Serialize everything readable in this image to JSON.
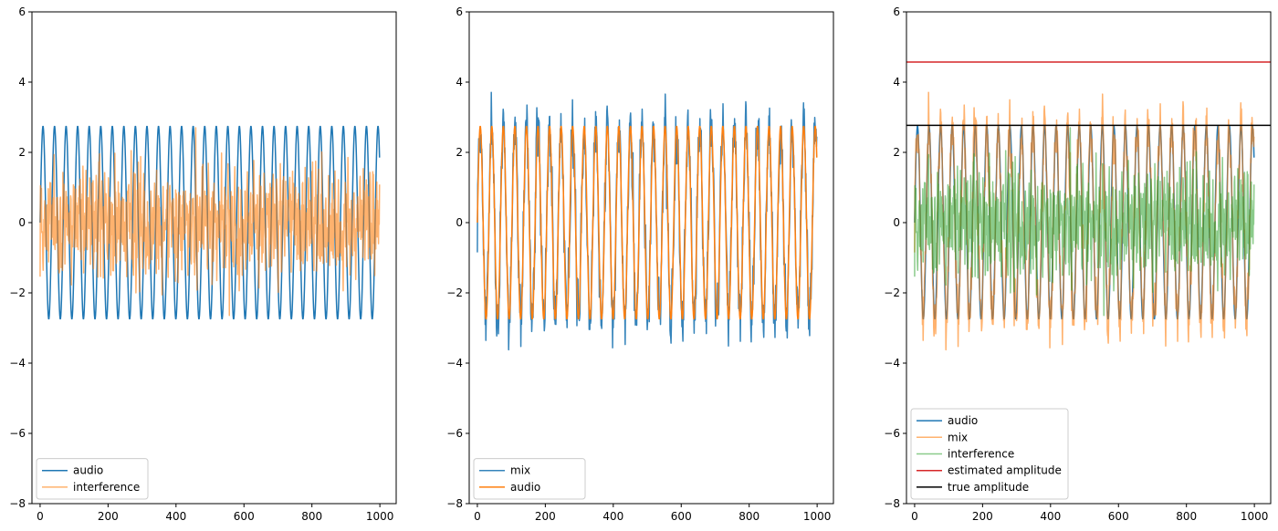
{
  "chart_data": [
    {
      "type": "line",
      "xlim": [
        -24,
        1048
      ],
      "ylim": [
        -8,
        6
      ],
      "xticks": [
        "0",
        "200",
        "400",
        "600",
        "800",
        "1000"
      ],
      "yticks": [
        "−8",
        "−6",
        "−4",
        "−2",
        "0",
        "2",
        "4",
        "6"
      ],
      "legend_location": "lower-left",
      "series": [
        {
          "name": "audio",
          "color": "#1f77b4",
          "alpha": 1.0,
          "kind": "sine",
          "amplitude": 2.75,
          "period": 34,
          "x_range": [
            0,
            1000
          ]
        },
        {
          "name": "interference",
          "color": "#ff7f0e",
          "alpha": 0.6,
          "kind": "noise",
          "range": [
            -2.7,
            2.7
          ],
          "x_range": [
            0,
            1000
          ]
        }
      ]
    },
    {
      "type": "line",
      "xlim": [
        -24,
        1048
      ],
      "ylim": [
        -8,
        6
      ],
      "xticks": [
        "0",
        "200",
        "400",
        "600",
        "800",
        "1000"
      ],
      "yticks": [
        "−8",
        "−6",
        "−4",
        "−2",
        "0",
        "2",
        "4",
        "6"
      ],
      "legend_location": "lower-left",
      "series": [
        {
          "name": "mix",
          "color": "#1f77b4",
          "alpha": 0.9,
          "kind": "mix",
          "range": [
            -4.3,
            4.6
          ],
          "x_range": [
            0,
            1000
          ]
        },
        {
          "name": "audio",
          "color": "#ff7f0e",
          "alpha": 1.0,
          "kind": "sine",
          "amplitude": 2.75,
          "period": 34,
          "x_range": [
            0,
            1000
          ]
        }
      ]
    },
    {
      "type": "line",
      "xlim": [
        -24,
        1048
      ],
      "ylim": [
        -8,
        6
      ],
      "xticks": [
        "0",
        "200",
        "400",
        "600",
        "800",
        "1000"
      ],
      "yticks": [
        "−8",
        "−6",
        "−4",
        "−2",
        "0",
        "2",
        "4",
        "6"
      ],
      "legend_location": "lower-left",
      "series": [
        {
          "name": "audio",
          "color": "#1f77b4",
          "alpha": 1.0,
          "kind": "sine",
          "amplitude": 2.75,
          "period": 34,
          "x_range": [
            0,
            1000
          ]
        },
        {
          "name": "mix",
          "color": "#ff7f0e",
          "alpha": 0.6,
          "kind": "mix",
          "range": [
            -4.3,
            4.6
          ],
          "x_range": [
            0,
            1000
          ]
        },
        {
          "name": "interference",
          "color": "#2ca02c",
          "alpha": 0.55,
          "kind": "noise",
          "range": [
            -2.7,
            2.7
          ],
          "x_range": [
            0,
            1000
          ]
        },
        {
          "name": "estimated amplitude",
          "color": "#d62728",
          "alpha": 1.0,
          "kind": "hline",
          "y": 4.57
        },
        {
          "name": "true amplitude",
          "color": "#000000",
          "alpha": 1.0,
          "kind": "hline",
          "y": 2.77
        }
      ]
    }
  ]
}
